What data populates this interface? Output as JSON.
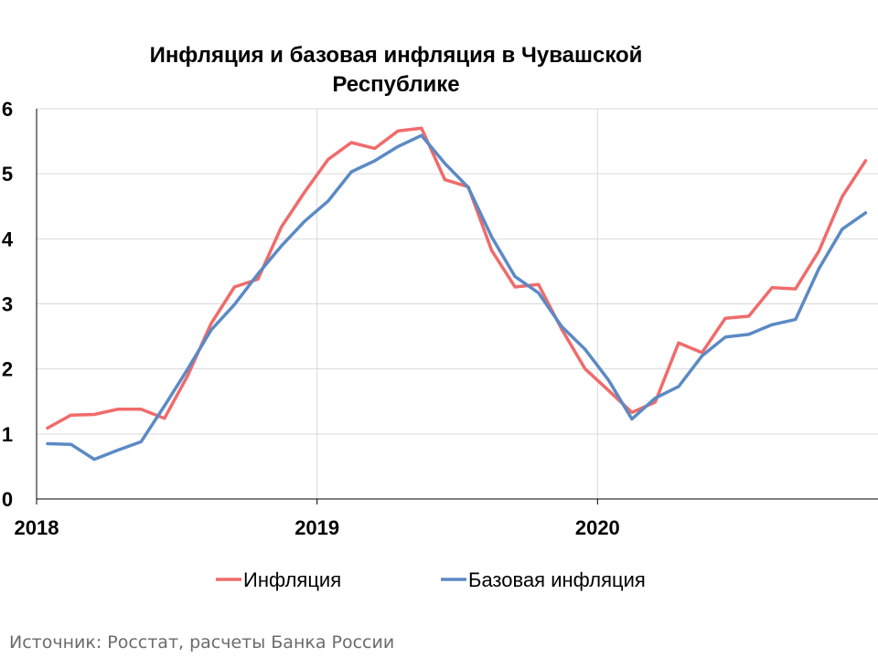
{
  "title_line1": "Инфляция и базовая инфляция в Чувашской",
  "title_line2": "Республике",
  "source": "Источник: Росстат, расчеты Банка России",
  "chart_data": {
    "type": "line",
    "title": "Инфляция и базовая инфляция в Чувашской Республике",
    "xlabel": "",
    "ylabel": "",
    "ylim": [
      0,
      6
    ],
    "yticks": [
      "0",
      "1",
      "2",
      "3",
      "4",
      "5",
      "6"
    ],
    "x_start": "2018-01",
    "x_ticks": [
      {
        "label": "2018",
        "x": "2018-01"
      },
      {
        "label": "2019",
        "x": "2019-01"
      },
      {
        "label": "2020",
        "x": "2020-01"
      }
    ],
    "grid": true,
    "legend_position": "bottom",
    "x": [
      "2018-01",
      "2018-02",
      "2018-03",
      "2018-04",
      "2018-05",
      "2018-06",
      "2018-07",
      "2018-08",
      "2018-09",
      "2018-10",
      "2018-11",
      "2018-12",
      "2019-01",
      "2019-02",
      "2019-03",
      "2019-04",
      "2019-05",
      "2019-06",
      "2019-07",
      "2019-08",
      "2019-09",
      "2019-10",
      "2019-11",
      "2019-12",
      "2020-01",
      "2020-02",
      "2020-03",
      "2020-04",
      "2020-05",
      "2020-06",
      "2020-07",
      "2020-08",
      "2020-09",
      "2020-10",
      "2020-11",
      "2020-12"
    ],
    "series": [
      {
        "name": "Инфляция",
        "color": "#f06b6b",
        "values": [
          1.09,
          1.29,
          1.3,
          1.38,
          1.38,
          1.24,
          1.9,
          2.7,
          3.26,
          3.38,
          4.18,
          4.72,
          5.22,
          5.48,
          5.39,
          5.66,
          5.7,
          4.91,
          4.8,
          3.82,
          3.26,
          3.3,
          2.61,
          2.0,
          1.67,
          1.33,
          1.49,
          2.4,
          2.25,
          2.78,
          2.81,
          3.25,
          3.23,
          3.81,
          4.65,
          5.2
        ]
      },
      {
        "name": "Базовая инфляция",
        "color": "#5b8ac4",
        "values": [
          0.85,
          0.84,
          0.61,
          0.75,
          0.88,
          1.43,
          2.0,
          2.6,
          2.99,
          3.46,
          3.89,
          4.27,
          4.58,
          5.03,
          5.2,
          5.42,
          5.59,
          5.16,
          4.79,
          4.03,
          3.42,
          3.17,
          2.65,
          2.3,
          1.83,
          1.23,
          1.55,
          1.73,
          2.2,
          2.49,
          2.53,
          2.68,
          2.76,
          3.54,
          4.15,
          4.4
        ]
      }
    ]
  }
}
